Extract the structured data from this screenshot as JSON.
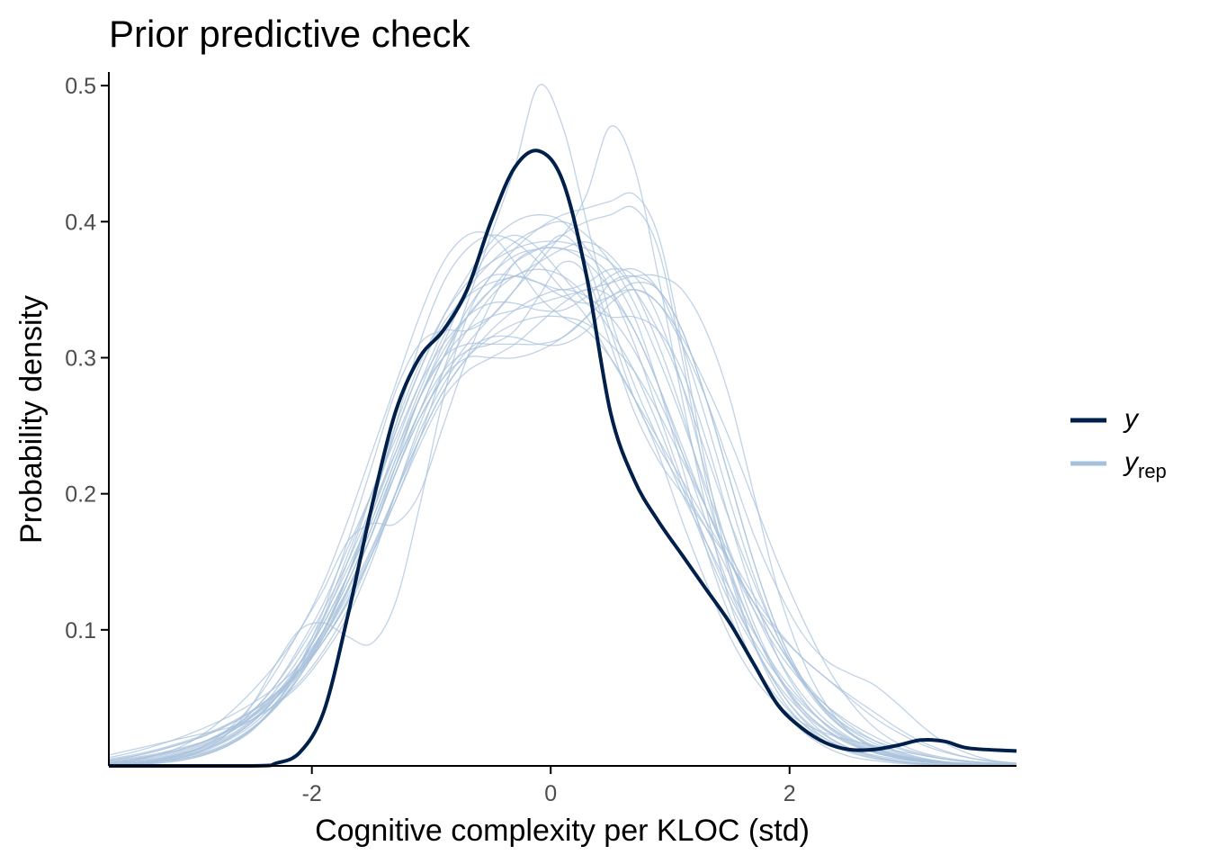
{
  "chart_data": {
    "type": "line",
    "title": "Prior predictive check",
    "xlabel": "Cognitive complexity per KLOC (std)",
    "ylabel": "Probability density",
    "xlim": [
      -3.7,
      3.9
    ],
    "ylim": [
      0,
      0.51
    ],
    "x_ticks": [
      -2,
      0,
      2
    ],
    "x_tick_labels": [
      "-2",
      "0",
      "2"
    ],
    "y_ticks": [
      0.1,
      0.2,
      0.3,
      0.4,
      0.5
    ],
    "y_tick_labels": [
      "0.1",
      "0.2",
      "0.3",
      "0.4",
      "0.5"
    ],
    "grid": false,
    "legend": {
      "position": "right",
      "entries": [
        {
          "label": "y",
          "subscript": "",
          "color": "#011f4b"
        },
        {
          "label": "y",
          "subscript": "rep",
          "color": "#a8c1db"
        }
      ]
    },
    "observed": {
      "color": "#011f4b",
      "x": [
        -3.7,
        -2.5,
        -2.3,
        -2.1,
        -1.9,
        -1.7,
        -1.5,
        -1.3,
        -1.1,
        -0.9,
        -0.7,
        -0.5,
        -0.3,
        -0.1,
        0.1,
        0.3,
        0.5,
        0.7,
        0.9,
        1.1,
        1.3,
        1.5,
        1.7,
        1.9,
        2.1,
        2.3,
        2.5,
        2.7,
        2.9,
        3.1,
        3.3,
        3.5,
        3.9
      ],
      "y": [
        0.0,
        0.0,
        0.002,
        0.01,
        0.04,
        0.11,
        0.19,
        0.26,
        0.3,
        0.32,
        0.35,
        0.4,
        0.44,
        0.452,
        0.43,
        0.36,
        0.26,
        0.21,
        0.18,
        0.155,
        0.13,
        0.105,
        0.075,
        0.045,
        0.028,
        0.017,
        0.012,
        0.012,
        0.015,
        0.019,
        0.018,
        0.013,
        0.011
      ]
    },
    "replicated": {
      "color": "#a8c1db",
      "x": [
        -3.7,
        -3.5,
        -3.3,
        -3.1,
        -2.9,
        -2.7,
        -2.5,
        -2.3,
        -2.1,
        -1.9,
        -1.7,
        -1.5,
        -1.3,
        -1.1,
        -0.9,
        -0.7,
        -0.5,
        -0.3,
        -0.1,
        0.1,
        0.3,
        0.5,
        0.7,
        0.9,
        1.1,
        1.3,
        1.5,
        1.7,
        1.9,
        2.1,
        2.3,
        2.5,
        2.7,
        2.9,
        3.1,
        3.3,
        3.5,
        3.7,
        3.9
      ],
      "series": [
        [
          0.008,
          0.012,
          0.016,
          0.02,
          0.024,
          0.028,
          0.034,
          0.045,
          0.06,
          0.082,
          0.11,
          0.15,
          0.2,
          0.25,
          0.29,
          0.32,
          0.345,
          0.36,
          0.365,
          0.36,
          0.345,
          0.32,
          0.29,
          0.25,
          0.205,
          0.16,
          0.12,
          0.088,
          0.06,
          0.04,
          0.026,
          0.016,
          0.01,
          0.006,
          0.004,
          0.002,
          0.001,
          0.0005,
          0.0002
        ],
        [
          0.004,
          0.007,
          0.011,
          0.016,
          0.022,
          0.03,
          0.04,
          0.053,
          0.07,
          0.092,
          0.12,
          0.155,
          0.195,
          0.24,
          0.29,
          0.34,
          0.39,
          0.44,
          0.5,
          0.47,
          0.4,
          0.33,
          0.28,
          0.24,
          0.2,
          0.165,
          0.13,
          0.098,
          0.07,
          0.048,
          0.031,
          0.019,
          0.011,
          0.006,
          0.003,
          0.002,
          0.001,
          0.0005,
          0.0002
        ],
        [
          0.002,
          0.004,
          0.007,
          0.011,
          0.017,
          0.026,
          0.04,
          0.06,
          0.088,
          0.12,
          0.16,
          0.2,
          0.24,
          0.28,
          0.31,
          0.33,
          0.35,
          0.37,
          0.38,
          0.39,
          0.42,
          0.47,
          0.44,
          0.36,
          0.27,
          0.19,
          0.12,
          0.075,
          0.045,
          0.026,
          0.014,
          0.007,
          0.004,
          0.002,
          0.001,
          0.0005,
          0.0002,
          0.0001,
          0.0
        ],
        [
          0.006,
          0.01,
          0.015,
          0.021,
          0.028,
          0.036,
          0.046,
          0.058,
          0.075,
          0.1,
          0.13,
          0.17,
          0.22,
          0.27,
          0.3,
          0.31,
          0.31,
          0.31,
          0.31,
          0.315,
          0.33,
          0.355,
          0.36,
          0.35,
          0.32,
          0.27,
          0.21,
          0.15,
          0.1,
          0.065,
          0.04,
          0.024,
          0.014,
          0.008,
          0.005,
          0.003,
          0.002,
          0.001,
          0.0005
        ],
        [
          0.001,
          0.002,
          0.004,
          0.008,
          0.015,
          0.027,
          0.045,
          0.07,
          0.1,
          0.13,
          0.165,
          0.178,
          0.178,
          0.2,
          0.25,
          0.3,
          0.34,
          0.37,
          0.38,
          0.38,
          0.375,
          0.36,
          0.33,
          0.28,
          0.22,
          0.16,
          0.11,
          0.075,
          0.05,
          0.032,
          0.02,
          0.012,
          0.007,
          0.004,
          0.002,
          0.001,
          0.0005,
          0.0002,
          0.0001
        ],
        [
          0.0005,
          0.001,
          0.003,
          0.006,
          0.012,
          0.024,
          0.045,
          0.075,
          0.1,
          0.105,
          0.095,
          0.09,
          0.12,
          0.19,
          0.27,
          0.33,
          0.36,
          0.375,
          0.38,
          0.38,
          0.37,
          0.35,
          0.32,
          0.28,
          0.23,
          0.18,
          0.13,
          0.09,
          0.058,
          0.035,
          0.02,
          0.011,
          0.006,
          0.003,
          0.0015,
          0.0007,
          0.0003,
          0.0001,
          0.0
        ],
        [
          0.002,
          0.004,
          0.008,
          0.014,
          0.024,
          0.038,
          0.055,
          0.075,
          0.1,
          0.135,
          0.18,
          0.23,
          0.28,
          0.33,
          0.37,
          0.39,
          0.39,
          0.37,
          0.345,
          0.33,
          0.32,
          0.3,
          0.27,
          0.23,
          0.18,
          0.135,
          0.095,
          0.065,
          0.045,
          0.032,
          0.024,
          0.019,
          0.015,
          0.011,
          0.008,
          0.005,
          0.003,
          0.002,
          0.001
        ],
        [
          0.001,
          0.002,
          0.004,
          0.008,
          0.014,
          0.024,
          0.04,
          0.06,
          0.085,
          0.115,
          0.15,
          0.19,
          0.23,
          0.27,
          0.3,
          0.32,
          0.33,
          0.335,
          0.34,
          0.345,
          0.35,
          0.355,
          0.36,
          0.36,
          0.35,
          0.32,
          0.27,
          0.2,
          0.13,
          0.08,
          0.046,
          0.025,
          0.013,
          0.007,
          0.0035,
          0.0017,
          0.0008,
          0.0003,
          0.0001
        ],
        [
          0.0005,
          0.001,
          0.002,
          0.004,
          0.008,
          0.015,
          0.026,
          0.045,
          0.072,
          0.11,
          0.155,
          0.2,
          0.245,
          0.29,
          0.33,
          0.36,
          0.385,
          0.4,
          0.405,
          0.4,
          0.38,
          0.35,
          0.31,
          0.26,
          0.21,
          0.165,
          0.125,
          0.092,
          0.066,
          0.046,
          0.031,
          0.02,
          0.012,
          0.007,
          0.004,
          0.002,
          0.001,
          0.0005,
          0.0002
        ],
        [
          0.003,
          0.005,
          0.008,
          0.012,
          0.018,
          0.027,
          0.038,
          0.052,
          0.07,
          0.095,
          0.128,
          0.17,
          0.215,
          0.255,
          0.285,
          0.31,
          0.33,
          0.35,
          0.37,
          0.39,
          0.4,
          0.405,
          0.41,
          0.38,
          0.3,
          0.21,
          0.14,
          0.09,
          0.058,
          0.036,
          0.022,
          0.013,
          0.008,
          0.005,
          0.003,
          0.0018,
          0.001,
          0.0005,
          0.0002
        ],
        [
          0.001,
          0.002,
          0.004,
          0.007,
          0.012,
          0.02,
          0.032,
          0.05,
          0.075,
          0.105,
          0.14,
          0.18,
          0.225,
          0.27,
          0.31,
          0.35,
          0.38,
          0.39,
          0.38,
          0.36,
          0.34,
          0.33,
          0.33,
          0.32,
          0.29,
          0.24,
          0.18,
          0.125,
          0.08,
          0.05,
          0.03,
          0.018,
          0.011,
          0.0065,
          0.004,
          0.0022,
          0.0012,
          0.0006,
          0.0003
        ],
        [
          0.002,
          0.003,
          0.005,
          0.009,
          0.014,
          0.022,
          0.034,
          0.05,
          0.072,
          0.1,
          0.135,
          0.175,
          0.22,
          0.26,
          0.3,
          0.33,
          0.35,
          0.36,
          0.355,
          0.345,
          0.34,
          0.345,
          0.355,
          0.35,
          0.32,
          0.27,
          0.21,
          0.15,
          0.1,
          0.065,
          0.042,
          0.028,
          0.019,
          0.013,
          0.008,
          0.005,
          0.003,
          0.0015,
          0.0007
        ],
        [
          0.001,
          0.002,
          0.003,
          0.006,
          0.011,
          0.019,
          0.03,
          0.047,
          0.07,
          0.1,
          0.14,
          0.19,
          0.25,
          0.31,
          0.355,
          0.38,
          0.39,
          0.385,
          0.37,
          0.35,
          0.33,
          0.3,
          0.27,
          0.24,
          0.21,
          0.18,
          0.15,
          0.12,
          0.09,
          0.065,
          0.045,
          0.03,
          0.019,
          0.011,
          0.006,
          0.003,
          0.0015,
          0.0007,
          0.0003
        ],
        [
          0.0008,
          0.0015,
          0.003,
          0.006,
          0.01,
          0.017,
          0.028,
          0.044,
          0.066,
          0.095,
          0.13,
          0.17,
          0.215,
          0.26,
          0.3,
          0.335,
          0.36,
          0.38,
          0.395,
          0.405,
          0.41,
          0.415,
          0.42,
          0.39,
          0.31,
          0.22,
          0.145,
          0.09,
          0.054,
          0.032,
          0.018,
          0.01,
          0.0055,
          0.003,
          0.0015,
          0.0007,
          0.0003,
          0.0001,
          0.0
        ],
        [
          0.004,
          0.006,
          0.009,
          0.013,
          0.018,
          0.025,
          0.034,
          0.046,
          0.062,
          0.085,
          0.115,
          0.155,
          0.2,
          0.245,
          0.28,
          0.305,
          0.315,
          0.315,
          0.31,
          0.31,
          0.32,
          0.34,
          0.35,
          0.34,
          0.31,
          0.27,
          0.22,
          0.17,
          0.13,
          0.098,
          0.078,
          0.068,
          0.06,
          0.046,
          0.03,
          0.017,
          0.009,
          0.004,
          0.002
        ],
        [
          0.001,
          0.002,
          0.003,
          0.005,
          0.009,
          0.016,
          0.027,
          0.043,
          0.066,
          0.098,
          0.14,
          0.19,
          0.245,
          0.29,
          0.325,
          0.345,
          0.355,
          0.36,
          0.37,
          0.38,
          0.385,
          0.375,
          0.35,
          0.31,
          0.26,
          0.2,
          0.145,
          0.1,
          0.066,
          0.042,
          0.027,
          0.017,
          0.01,
          0.006,
          0.0035,
          0.002,
          0.001,
          0.0005,
          0.0002
        ],
        [
          0.003,
          0.005,
          0.008,
          0.012,
          0.018,
          0.026,
          0.037,
          0.051,
          0.07,
          0.095,
          0.125,
          0.16,
          0.2,
          0.24,
          0.275,
          0.3,
          0.315,
          0.325,
          0.33,
          0.33,
          0.325,
          0.31,
          0.29,
          0.26,
          0.225,
          0.19,
          0.155,
          0.125,
          0.1,
          0.08,
          0.065,
          0.052,
          0.04,
          0.028,
          0.018,
          0.011,
          0.006,
          0.003,
          0.0015
        ],
        [
          0.0005,
          0.001,
          0.002,
          0.004,
          0.008,
          0.015,
          0.027,
          0.046,
          0.075,
          0.115,
          0.165,
          0.22,
          0.275,
          0.31,
          0.32,
          0.32,
          0.33,
          0.35,
          0.375,
          0.39,
          0.37,
          0.32,
          0.27,
          0.235,
          0.205,
          0.175,
          0.14,
          0.1,
          0.066,
          0.04,
          0.023,
          0.013,
          0.007,
          0.0035,
          0.0017,
          0.0008,
          0.0004,
          0.0002,
          0.0001
        ],
        [
          0.002,
          0.003,
          0.005,
          0.008,
          0.013,
          0.021,
          0.033,
          0.05,
          0.072,
          0.1,
          0.135,
          0.175,
          0.22,
          0.26,
          0.29,
          0.305,
          0.31,
          0.32,
          0.345,
          0.37,
          0.36,
          0.31,
          0.26,
          0.225,
          0.2,
          0.175,
          0.15,
          0.12,
          0.09,
          0.063,
          0.042,
          0.027,
          0.017,
          0.01,
          0.0055,
          0.003,
          0.0015,
          0.0007,
          0.0003
        ],
        [
          0.005,
          0.008,
          0.012,
          0.017,
          0.023,
          0.031,
          0.041,
          0.054,
          0.072,
          0.097,
          0.13,
          0.17,
          0.215,
          0.255,
          0.285,
          0.3,
          0.3,
          0.3,
          0.305,
          0.315,
          0.33,
          0.345,
          0.35,
          0.34,
          0.315,
          0.28,
          0.24,
          0.195,
          0.15,
          0.11,
          0.075,
          0.048,
          0.029,
          0.017,
          0.01,
          0.006,
          0.0035,
          0.002,
          0.001
        ],
        [
          0.0015,
          0.003,
          0.005,
          0.009,
          0.015,
          0.024,
          0.037,
          0.056,
          0.08,
          0.11,
          0.145,
          0.185,
          0.23,
          0.275,
          0.315,
          0.345,
          0.36,
          0.36,
          0.355,
          0.35,
          0.355,
          0.365,
          0.36,
          0.33,
          0.28,
          0.215,
          0.155,
          0.105,
          0.068,
          0.043,
          0.027,
          0.017,
          0.01,
          0.006,
          0.0035,
          0.002,
          0.001,
          0.0005,
          0.0002
        ],
        [
          0.003,
          0.005,
          0.008,
          0.012,
          0.018,
          0.026,
          0.036,
          0.05,
          0.068,
          0.092,
          0.122,
          0.158,
          0.2,
          0.24,
          0.275,
          0.3,
          0.32,
          0.335,
          0.345,
          0.35,
          0.345,
          0.33,
          0.305,
          0.27,
          0.23,
          0.19,
          0.15,
          0.115,
          0.085,
          0.062,
          0.045,
          0.032,
          0.022,
          0.014,
          0.009,
          0.005,
          0.003,
          0.0015,
          0.0007
        ],
        [
          0.001,
          0.002,
          0.004,
          0.007,
          0.012,
          0.02,
          0.032,
          0.05,
          0.075,
          0.108,
          0.15,
          0.2,
          0.25,
          0.295,
          0.33,
          0.355,
          0.37,
          0.38,
          0.385,
          0.385,
          0.38,
          0.37,
          0.35,
          0.32,
          0.28,
          0.23,
          0.18,
          0.135,
          0.095,
          0.064,
          0.041,
          0.025,
          0.015,
          0.009,
          0.005,
          0.0028,
          0.0015,
          0.0008,
          0.0004
        ],
        [
          0.004,
          0.007,
          0.011,
          0.016,
          0.022,
          0.03,
          0.04,
          0.053,
          0.07,
          0.092,
          0.12,
          0.155,
          0.195,
          0.235,
          0.27,
          0.29,
          0.3,
          0.31,
          0.325,
          0.34,
          0.35,
          0.345,
          0.32,
          0.28,
          0.235,
          0.19,
          0.15,
          0.12,
          0.098,
          0.08,
          0.065,
          0.05,
          0.036,
          0.025,
          0.016,
          0.01,
          0.006,
          0.0035,
          0.002
        ],
        [
          0.0008,
          0.0015,
          0.003,
          0.005,
          0.009,
          0.016,
          0.027,
          0.044,
          0.068,
          0.1,
          0.14,
          0.185,
          0.235,
          0.28,
          0.32,
          0.35,
          0.37,
          0.385,
          0.395,
          0.4,
          0.39,
          0.37,
          0.34,
          0.3,
          0.255,
          0.205,
          0.158,
          0.115,
          0.08,
          0.053,
          0.034,
          0.021,
          0.013,
          0.0075,
          0.0042,
          0.0023,
          0.0012,
          0.0006,
          0.0003
        ],
        [
          0.002,
          0.004,
          0.006,
          0.01,
          0.016,
          0.024,
          0.036,
          0.053,
          0.076,
          0.105,
          0.14,
          0.18,
          0.225,
          0.27,
          0.305,
          0.33,
          0.34,
          0.34,
          0.335,
          0.335,
          0.345,
          0.36,
          0.365,
          0.35,
          0.31,
          0.255,
          0.195,
          0.14,
          0.095,
          0.062,
          0.039,
          0.024,
          0.014,
          0.008,
          0.0045,
          0.0025,
          0.0013,
          0.0007,
          0.0003
        ]
      ]
    }
  }
}
